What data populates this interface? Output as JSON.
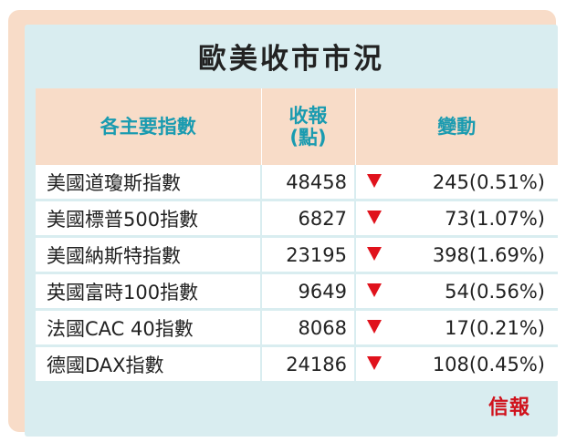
{
  "title": "歐美收市市況",
  "headers": {
    "name": "各主要指數",
    "close_line1": "收報",
    "close_line2": "(點)",
    "change": "變動"
  },
  "rows": [
    {
      "name": "美國道瓊斯指數",
      "close": "48458",
      "change": "245(0.51%)",
      "direction": "down"
    },
    {
      "name": "美國標普500指數",
      "close": "6827",
      "change": "73(1.07%)",
      "direction": "down"
    },
    {
      "name": "美國納斯特指數",
      "close": "23195",
      "change": "398(1.69%)",
      "direction": "down"
    },
    {
      "name": "英國富時100指數",
      "close": "9649",
      "change": "54(0.56%)",
      "direction": "down"
    },
    {
      "name": "法國CAC 40指數",
      "close": "8068",
      "change": "17(0.21%)",
      "direction": "down"
    },
    {
      "name": "德國DAX指數",
      "close": "24186",
      "change": "108(0.45%)",
      "direction": "down"
    }
  ],
  "colors": {
    "frame": "#f8dcc8",
    "background": "#d9edf0",
    "header_text": "#1a9bb0",
    "down": "#e0121c"
  },
  "logo": "信報"
}
